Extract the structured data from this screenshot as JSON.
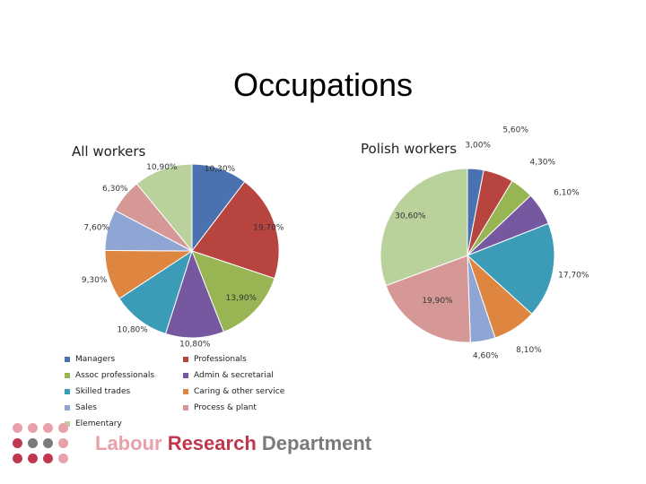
{
  "title": "Occupations",
  "colors": {
    "Managers": "#4a72b0",
    "Professionals": "#b8443f",
    "Assoc professionals": "#98b553",
    "Admin & secretarial": "#7558a0",
    "Skilled trades": "#3c9bb6",
    "Caring & other service": "#de8540",
    "Sales": "#8fa6d4",
    "Process & plant": "#d69797",
    "Elementary": "#b9d19a",
    "logo_accent": "#c0384d",
    "logo_light": "#e8a0ab",
    "logo_grey": "#7a7a7a"
  },
  "chart_data": [
    {
      "type": "pie",
      "title": "All workers",
      "categories": [
        "Managers",
        "Professionals",
        "Assoc professionals",
        "Admin & secretarial",
        "Skilled trades",
        "Caring & other service",
        "Sales",
        "Process & plant",
        "Elementary"
      ],
      "values": [
        10.3,
        19.7,
        13.9,
        10.8,
        10.8,
        9.3,
        7.6,
        6.3,
        10.9
      ],
      "labels": [
        "10,30%",
        "19,70%",
        "13,90%",
        "10,80%",
        "10,80%",
        "9,30%",
        "7,60%",
        "6,30%",
        "10,90%"
      ],
      "legend": "bottom"
    },
    {
      "type": "pie",
      "title": "Polish workers",
      "categories": [
        "Managers",
        "Professionals",
        "Assoc professionals",
        "Admin & secretarial",
        "Skilled trades",
        "Caring & other service",
        "Sales",
        "Process & plant",
        "Elementary"
      ],
      "values": [
        3.0,
        5.6,
        4.3,
        6.1,
        17.7,
        8.1,
        4.6,
        19.9,
        30.6
      ],
      "labels": [
        "3,00%",
        "5,60%",
        "4,30%",
        "6,10%",
        "17,70%",
        "8,10%",
        "4,60%",
        "19,90%",
        "30,60%"
      ],
      "legend": "bottom"
    }
  ],
  "legend_items": [
    "Managers",
    "Professionals",
    "Assoc professionals",
    "Admin & secretarial",
    "Skilled trades",
    "Caring & other service",
    "Sales",
    "Process & plant",
    "Elementary"
  ],
  "logo": {
    "word1": "Labour",
    "word2": "Research",
    "word3": "Department"
  }
}
